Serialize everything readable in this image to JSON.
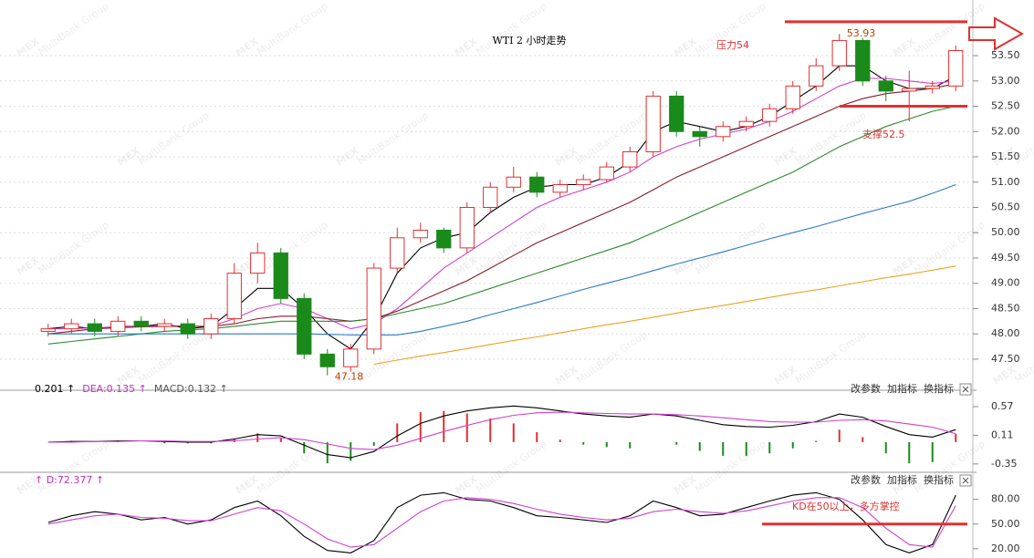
{
  "watermark": "MEX",
  "watermark_sub": "MultiBank Group",
  "chart_data": [
    {
      "type": "candlestick",
      "title": "WTI 2 小时走势",
      "annotations": {
        "resistance": "压力54",
        "support": "支撑52.5"
      },
      "up_color": "#e03030",
      "down_color": "#1a8a1a",
      "open": [
        48.05,
        48.1,
        48.2,
        48.05,
        48.25,
        48.15,
        48.2,
        48.0,
        48.3,
        49.2,
        49.6,
        48.7,
        47.6,
        47.35,
        47.7,
        49.3,
        49.9,
        50.05,
        49.7,
        50.5,
        50.9,
        51.1,
        50.8,
        50.95,
        51.05,
        51.3,
        51.6,
        52.7,
        52.0,
        51.9,
        52.1,
        52.2,
        52.45,
        52.9,
        53.3,
        53.8,
        53.0,
        52.8,
        52.85,
        52.9
      ],
      "high": [
        48.2,
        48.3,
        48.3,
        48.35,
        48.35,
        48.3,
        48.3,
        48.4,
        49.4,
        49.8,
        49.7,
        48.8,
        47.7,
        47.8,
        49.4,
        50.1,
        50.2,
        50.1,
        50.6,
        51.0,
        51.3,
        51.2,
        51.05,
        51.15,
        51.4,
        51.7,
        52.8,
        52.8,
        52.1,
        52.2,
        52.3,
        52.55,
        53.0,
        53.45,
        53.93,
        53.85,
        53.1,
        53.2,
        53.0,
        53.7
      ],
      "low": [
        47.95,
        48.0,
        47.95,
        47.95,
        48.05,
        48.05,
        47.9,
        47.9,
        48.2,
        49.0,
        48.6,
        47.5,
        47.18,
        47.25,
        47.6,
        49.2,
        49.8,
        49.6,
        49.6,
        50.4,
        50.8,
        50.7,
        50.7,
        50.85,
        51.0,
        51.2,
        51.5,
        51.9,
        51.7,
        51.8,
        52.0,
        52.1,
        52.35,
        52.8,
        53.2,
        52.9,
        52.6,
        52.2,
        52.75,
        52.8
      ],
      "close": [
        48.1,
        48.2,
        48.05,
        48.25,
        48.15,
        48.2,
        48.0,
        48.3,
        49.2,
        49.6,
        48.7,
        47.6,
        47.35,
        47.7,
        49.3,
        49.9,
        50.05,
        49.7,
        50.5,
        50.9,
        51.1,
        50.8,
        50.95,
        51.05,
        51.3,
        51.6,
        52.7,
        52.0,
        51.9,
        52.1,
        52.2,
        52.45,
        52.9,
        53.3,
        53.8,
        53.0,
        52.8,
        52.85,
        52.9,
        53.6
      ],
      "series": [
        {
          "color": "#000000",
          "values": [
            48.1,
            48.15,
            48.1,
            48.15,
            48.15,
            48.2,
            48.1,
            48.15,
            48.5,
            48.9,
            48.9,
            48.5,
            48.0,
            47.7,
            48.3,
            49.2,
            49.7,
            49.9,
            50.0,
            50.4,
            50.7,
            50.9,
            50.95,
            50.95,
            51.1,
            51.4,
            52.0,
            52.2,
            52.1,
            52.0,
            52.1,
            52.3,
            52.6,
            52.9,
            53.3,
            53.3,
            53.0,
            52.85,
            52.85,
            53.1
          ]
        },
        {
          "color": "#d040d0",
          "values": [
            48.1,
            48.1,
            48.12,
            48.14,
            48.15,
            48.17,
            48.15,
            48.15,
            48.3,
            48.5,
            48.6,
            48.5,
            48.3,
            48.1,
            48.2,
            48.5,
            48.9,
            49.3,
            49.6,
            49.9,
            50.2,
            50.5,
            50.7,
            50.85,
            51.0,
            51.2,
            51.5,
            51.7,
            51.85,
            51.95,
            52.05,
            52.2,
            52.4,
            52.65,
            52.9,
            53.05,
            53.05,
            53.0,
            52.95,
            53.0
          ]
        },
        {
          "color": "#8b1a2a",
          "values": [
            48.0,
            48.05,
            48.1,
            48.12,
            48.14,
            48.15,
            48.15,
            48.15,
            48.2,
            48.3,
            48.35,
            48.35,
            48.3,
            48.25,
            48.3,
            48.45,
            48.65,
            48.85,
            49.05,
            49.3,
            49.55,
            49.8,
            50.0,
            50.2,
            50.4,
            50.6,
            50.85,
            51.1,
            51.3,
            51.5,
            51.7,
            51.9,
            52.1,
            52.3,
            52.5,
            52.65,
            52.75,
            52.8,
            52.85,
            52.95
          ]
        },
        {
          "color": "#2a8a2a",
          "values": [
            47.8,
            47.85,
            47.9,
            47.95,
            48.0,
            48.05,
            48.08,
            48.1,
            48.15,
            48.2,
            48.25,
            48.25,
            48.25,
            48.25,
            48.3,
            48.4,
            48.5,
            48.6,
            48.75,
            48.9,
            49.05,
            49.2,
            49.35,
            49.5,
            49.65,
            49.8,
            50.0,
            50.2,
            50.4,
            50.6,
            50.8,
            51.0,
            51.2,
            51.45,
            51.7,
            51.9,
            52.1,
            52.25,
            52.4,
            52.5
          ]
        },
        {
          "color": "#2a7ac8",
          "values": [
            48.0,
            48.0,
            48.0,
            48.0,
            48.0,
            48.0,
            48.0,
            48.0,
            48.0,
            48.0,
            48.0,
            48.0,
            47.99,
            47.98,
            47.98,
            47.98,
            48.05,
            48.15,
            48.25,
            48.38,
            48.5,
            48.62,
            48.75,
            48.88,
            49.0,
            49.12,
            49.25,
            49.38,
            49.5,
            49.62,
            49.75,
            49.88,
            50.0,
            50.12,
            50.25,
            50.38,
            50.5,
            50.62,
            50.78,
            50.95
          ]
        },
        {
          "color": "#f0a020",
          "values": [
            null,
            null,
            null,
            null,
            null,
            null,
            null,
            null,
            null,
            null,
            null,
            null,
            null,
            null,
            47.4,
            47.48,
            47.56,
            47.63,
            47.71,
            47.79,
            47.87,
            47.94,
            48.02,
            48.1,
            48.18,
            48.25,
            48.33,
            48.41,
            48.49,
            48.56,
            48.64,
            48.72,
            48.8,
            48.87,
            48.95,
            49.03,
            49.11,
            49.18,
            49.26,
            49.34
          ]
        }
      ],
      "ref_lines": [
        {
          "value": 54.17,
          "color": "#e03030"
        },
        {
          "value": 52.5,
          "color": "#e03030"
        }
      ],
      "ylim": [
        46.94,
        54.24
      ],
      "yticks": [
        {
          "value": 47.5,
          "label": "47.50"
        },
        {
          "value": 48,
          "label": "48.00"
        },
        {
          "value": 48.5,
          "label": "48.50"
        },
        {
          "value": 49,
          "label": "49.00"
        },
        {
          "value": 49.5,
          "label": "49.50"
        },
        {
          "value": 50,
          "label": "50.00"
        },
        {
          "value": 50.5,
          "label": "50.50"
        },
        {
          "value": 51,
          "label": "51.00"
        },
        {
          "value": 51.5,
          "label": "51.50"
        },
        {
          "value": 52,
          "label": "52.00"
        },
        {
          "value": 52.5,
          "label": "52.50"
        },
        {
          "value": 53,
          "label": "53.00"
        },
        {
          "value": 53.5,
          "label": "53.50"
        }
      ],
      "grid": true
    },
    {
      "type": "macd",
      "header": [
        {
          "text": "0.201 ↑",
          "color": "#000000"
        },
        {
          "text": "DEA:0.135 ↑",
          "color": "#c030c0"
        },
        {
          "text": "MACD:0.132 ↑",
          "color": "#555555"
        }
      ],
      "buttons": [
        "改参数",
        "加指标",
        "换指标"
      ],
      "series": [
        {
          "color": "#000000",
          "values": [
            0.0,
            0.01,
            0.01,
            0.02,
            0.02,
            0.01,
            0.0,
            0.0,
            0.05,
            0.12,
            0.1,
            -0.05,
            -0.2,
            -0.25,
            -0.15,
            0.1,
            0.3,
            0.42,
            0.5,
            0.55,
            0.58,
            0.55,
            0.5,
            0.45,
            0.42,
            0.4,
            0.45,
            0.42,
            0.35,
            0.28,
            0.25,
            0.24,
            0.27,
            0.33,
            0.45,
            0.4,
            0.25,
            0.12,
            0.08,
            0.201
          ]
        },
        {
          "color": "#d040d0",
          "values": [
            0.0,
            0.0,
            0.01,
            0.01,
            0.02,
            0.02,
            0.01,
            0.01,
            0.02,
            0.05,
            0.07,
            0.04,
            -0.03,
            -0.1,
            -0.12,
            -0.05,
            0.06,
            0.17,
            0.27,
            0.36,
            0.43,
            0.47,
            0.48,
            0.47,
            0.46,
            0.45,
            0.45,
            0.44,
            0.42,
            0.39,
            0.36,
            0.33,
            0.32,
            0.32,
            0.35,
            0.36,
            0.34,
            0.29,
            0.24,
            0.135
          ]
        }
      ],
      "bars": {
        "up_color": "#e03030",
        "down_color": "#1a8a1a",
        "values": [
          0,
          0.02,
          0,
          0.02,
          0,
          -0.02,
          -0.02,
          -0.02,
          0.06,
          0.14,
          0.06,
          -0.18,
          -0.34,
          -0.3,
          -0.06,
          0.3,
          0.48,
          0.5,
          0.46,
          0.38,
          0.3,
          0.16,
          0.04,
          -0.04,
          -0.08,
          -0.1,
          0,
          -0.04,
          -0.14,
          -0.22,
          -0.22,
          -0.18,
          -0.1,
          0.02,
          0.2,
          0.08,
          -0.18,
          -0.34,
          -0.32,
          0.132
        ]
      },
      "ylim": [
        -0.44,
        0.73
      ],
      "yticks": [
        0.57,
        0.11,
        -0.35
      ]
    },
    {
      "type": "kd",
      "header": [
        {
          "text": "↑ D:72.377 ↑",
          "color": "#c030c0"
        }
      ],
      "buttons": [
        "改参数",
        "加指标",
        "换指标"
      ],
      "annotation": "KD在50以上，多方掌控",
      "ref_lines": [
        {
          "value": 50,
          "color": "#e03030"
        }
      ],
      "series": [
        {
          "color": "#000000",
          "values": [
            52,
            60,
            65,
            62,
            55,
            58,
            50,
            55,
            70,
            78,
            60,
            35,
            18,
            15,
            30,
            70,
            85,
            88,
            80,
            78,
            70,
            60,
            58,
            55,
            52,
            60,
            78,
            70,
            60,
            62,
            70,
            78,
            85,
            88,
            80,
            55,
            25,
            15,
            25,
            85
          ]
        },
        {
          "color": "#d040d0",
          "values": [
            50,
            55,
            60,
            62,
            58,
            57,
            54,
            54,
            62,
            70,
            66,
            50,
            32,
            22,
            25,
            45,
            65,
            78,
            82,
            80,
            75,
            68,
            62,
            58,
            55,
            57,
            65,
            68,
            65,
            63,
            66,
            72,
            78,
            82,
            82,
            70,
            45,
            25,
            22,
            72.377
          ]
        }
      ],
      "ylim": [
        11,
        94
      ],
      "yticks": [
        {
          "value": 80,
          "label": "80.00"
        },
        {
          "value": 50,
          "label": "50.00"
        },
        {
          "value": 20,
          "label": "20.00"
        }
      ]
    }
  ]
}
